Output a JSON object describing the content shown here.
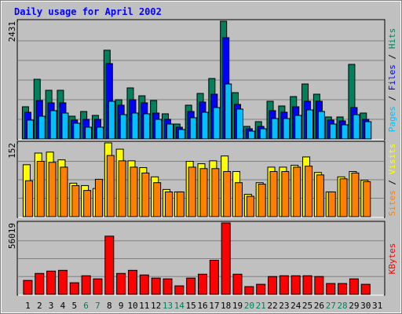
{
  "chart_data": [
    {
      "type": "bar",
      "title": "Daily usage for April 2002",
      "categories": [
        "1",
        "2",
        "3",
        "4",
        "5",
        "6",
        "7",
        "8",
        "9",
        "10",
        "11",
        "12",
        "13",
        "14",
        "15",
        "16",
        "17",
        "18",
        "19",
        "20",
        "21",
        "22",
        "23",
        "24",
        "25",
        "26",
        "27",
        "28",
        "29",
        "30",
        "31"
      ],
      "weekend_indexes": [
        5,
        6,
        12,
        13,
        19,
        20,
        26,
        27
      ],
      "weekend_color": "#00805c",
      "label_color": "#0000ff",
      "separator": " / ",
      "ylim": [
        0,
        2431
      ],
      "yticks": [
        2431
      ],
      "grid": true,
      "series": [
        {
          "name": "Hits",
          "color": "#00805c",
          "values": [
            665,
            1232,
            1005,
            1005,
            470,
            567,
            486,
            1832,
            810,
            1054,
            891,
            794,
            519,
            308,
            697,
            940,
            1248,
            2431,
            956,
            259,
            357,
            778,
            681,
            875,
            1135,
            924,
            454,
            454,
            1540,
            535,
            null
          ]
        },
        {
          "name": "Files",
          "color": "#0000ff",
          "values": [
            551,
            794,
            746,
            746,
            389,
            405,
            405,
            1556,
            697,
            810,
            746,
            535,
            405,
            243,
            567,
            762,
            924,
            2091,
            713,
            211,
            259,
            584,
            551,
            665,
            778,
            778,
            389,
            373,
            648,
            405,
            null
          ]
        },
        {
          "name": "Pages",
          "color": "#00c0ff",
          "values": [
            389,
            470,
            584,
            535,
            324,
            243,
            243,
            778,
            502,
            535,
            519,
            405,
            308,
            195,
            438,
            551,
            648,
            1135,
            616,
            162,
            211,
            421,
            421,
            486,
            600,
            567,
            308,
            292,
            502,
            357,
            null
          ]
        }
      ]
    },
    {
      "type": "bar",
      "separator": " / ",
      "ylim": [
        0,
        152
      ],
      "yticks": [
        152
      ],
      "grid": true,
      "series": [
        {
          "name": "Visits",
          "color": "#ffff00",
          "values": [
            107,
            131,
            133,
            117,
            69,
            64,
            58,
            152,
            139,
            115,
            101,
            82,
            56,
            51,
            114,
            109,
            115,
            125,
            93,
            46,
            70,
            102,
            102,
            106,
            123,
            91,
            51,
            82,
            93,
            75,
            null
          ]
        },
        {
          "name": "Sites",
          "color": "#ff8000",
          "values": [
            74,
            114,
            112,
            102,
            64,
            54,
            77,
            126,
            115,
            102,
            90,
            70,
            51,
            51,
            102,
            99,
            99,
            93,
            70,
            42,
            67,
            93,
            93,
            102,
            104,
            86,
            51,
            78,
            90,
            72,
            null
          ]
        }
      ]
    },
    {
      "type": "bar",
      "ylim": [
        0,
        56019
      ],
      "yticks": [
        56019
      ],
      "grid": true,
      "series": [
        {
          "name": "KBytes",
          "color": "#ff0000",
          "values": [
            10962,
            16443,
            18270,
            18879,
            9135,
            14616,
            12180,
            45675,
            16443,
            18879,
            15225,
            12789,
            12180,
            6699,
            12789,
            15834,
            26796,
            56019,
            15834,
            6090,
            7917,
            14007,
            14616,
            14616,
            14616,
            14007,
            8526,
            8526,
            12180,
            7917,
            null
          ]
        }
      ]
    }
  ]
}
